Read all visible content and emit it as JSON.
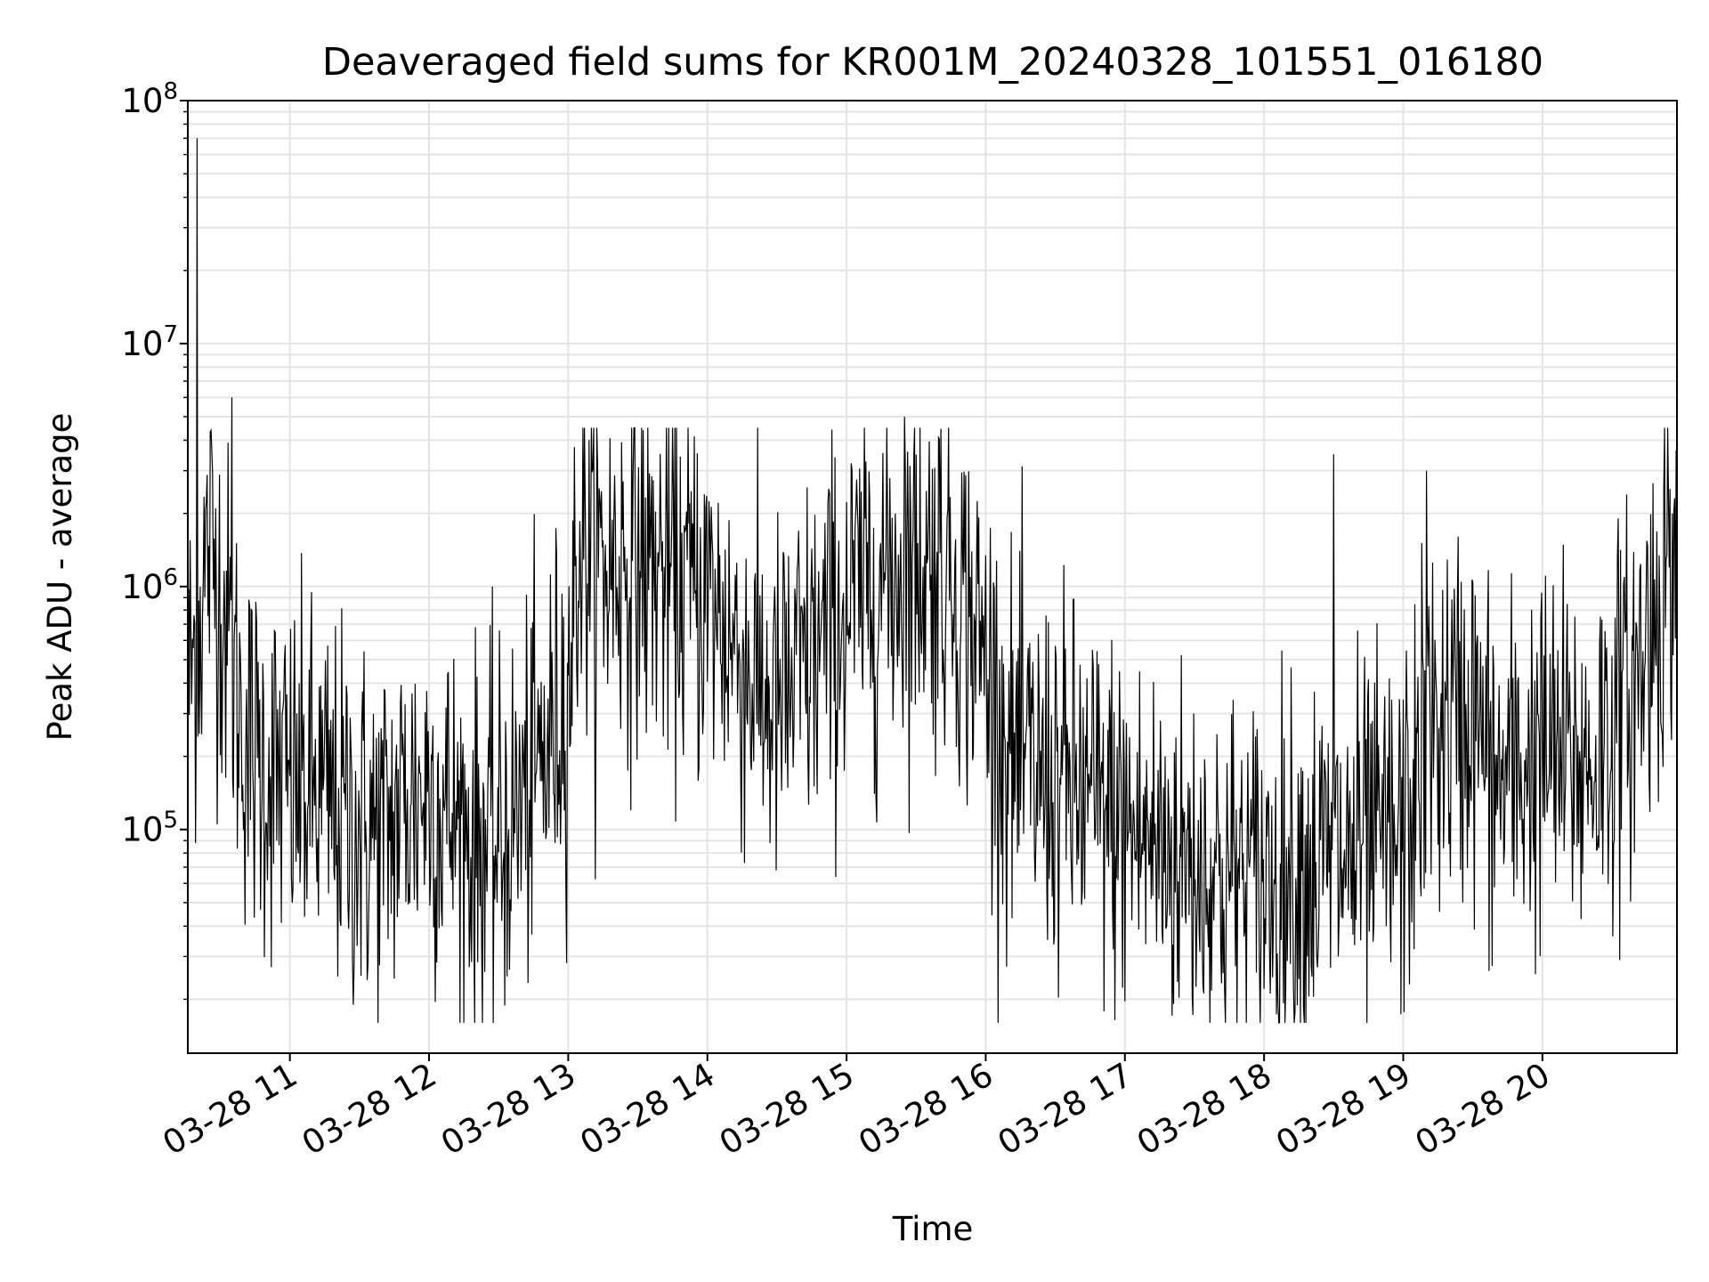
{
  "chart_data": {
    "type": "line",
    "title": "Deaveraged field sums for KR001M_20240328_101551_016180",
    "xlabel": "Time",
    "ylabel": "Peak ADU - average",
    "x_ticks": [
      "03-28 11",
      "03-28 12",
      "03-28 13",
      "03-28 14",
      "03-28 15",
      "03-28 16",
      "03-28 17",
      "03-28 18",
      "03-28 19",
      "03-28 20"
    ],
    "x_range": [
      "2024-03-28 10:16",
      "2024-03-28 20:58"
    ],
    "y_scale": "log",
    "ylim": [
      12000,
      100000000
    ],
    "y_ticks": [
      {
        "base": "10",
        "exp": "5",
        "value": 100000
      },
      {
        "base": "10",
        "exp": "6",
        "value": 1000000
      },
      {
        "base": "10",
        "exp": "7",
        "value": 10000000
      },
      {
        "base": "10",
        "exp": "8",
        "value": 100000000
      }
    ],
    "grid": true,
    "line_color": "#000000",
    "grid_color": "#e4e4e4",
    "series": [
      {
        "x": [
          "2024-03-28 10:16",
          "2024-03-28 10:20",
          "2024-03-28 10:25",
          "2024-03-28 10:30",
          "2024-03-28 10:35",
          "2024-03-28 10:40",
          "2024-03-28 10:45",
          "2024-03-28 10:50",
          "2024-03-28 11:00",
          "2024-03-28 11:10",
          "2024-03-28 11:20",
          "2024-03-28 11:30",
          "2024-03-28 11:40",
          "2024-03-28 11:50",
          "2024-03-28 12:00",
          "2024-03-28 12:10",
          "2024-03-28 12:20",
          "2024-03-28 12:30",
          "2024-03-28 12:40",
          "2024-03-28 12:50",
          "2024-03-28 13:00",
          "2024-03-28 13:05",
          "2024-03-28 13:15",
          "2024-03-28 13:30",
          "2024-03-28 13:45",
          "2024-03-28 14:00",
          "2024-03-28 14:15",
          "2024-03-28 14:30",
          "2024-03-28 14:45",
          "2024-03-28 15:00",
          "2024-03-28 15:15",
          "2024-03-28 15:30",
          "2024-03-28 15:45",
          "2024-03-28 16:00",
          "2024-03-28 16:10",
          "2024-03-28 16:20",
          "2024-03-28 16:40",
          "2024-03-28 17:00",
          "2024-03-28 17:20",
          "2024-03-28 17:40",
          "2024-03-28 18:00",
          "2024-03-28 18:20",
          "2024-03-28 18:40",
          "2024-03-28 19:00",
          "2024-03-28 19:10",
          "2024-03-28 19:30",
          "2024-03-28 19:40",
          "2024-03-28 20:00",
          "2024-03-28 20:20",
          "2024-03-28 20:40",
          "2024-03-28 20:58"
        ],
        "y": [
          400000,
          600000,
          1500000,
          1000000,
          500000,
          250000,
          200000,
          180000,
          150000,
          140000,
          120000,
          100000,
          95000,
          130000,
          150000,
          110000,
          90000,
          85000,
          130000,
          200000,
          400000,
          1600000,
          1200000,
          1300000,
          1100000,
          900000,
          500000,
          300000,
          500000,
          800000,
          1100000,
          1300000,
          1200000,
          500000,
          200000,
          170000,
          140000,
          100000,
          80000,
          65000,
          60000,
          70000,
          80000,
          90000,
          250000,
          300000,
          150000,
          200000,
          180000,
          400000,
          1600000
        ],
        "noise_ln": 0.9,
        "spikes": [
          {
            "x": "2024-03-28 10:20",
            "y": 70000000
          },
          {
            "x": "2024-03-28 10:35",
            "y": 6000000
          },
          {
            "x": "2024-03-28 15:25",
            "y": 5000000
          },
          {
            "x": "2024-03-28 18:30",
            "y": 3500000
          },
          {
            "x": "2024-03-28 19:10",
            "y": 3000000
          }
        ]
      }
    ]
  }
}
